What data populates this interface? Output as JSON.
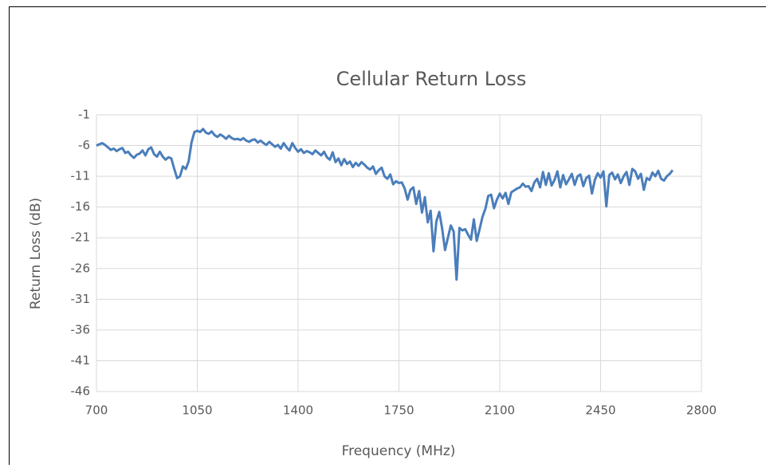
{
  "chart_data": {
    "type": "line",
    "title": "Cellular Return Loss",
    "x_label": "Frequency (MHz)",
    "y_label": "Return Loss (dB)",
    "color": "#4a7ebb",
    "grid": true,
    "xlim": [
      700,
      2800
    ],
    "xticks": [
      700,
      1050,
      1400,
      1750,
      2100,
      2450,
      2800
    ],
    "ylim": [
      -46,
      -1
    ],
    "yticks": [
      -46,
      -41,
      -36,
      -31,
      -26,
      -21,
      -16,
      -11,
      -6,
      -1
    ],
    "x": [
      700,
      710,
      720,
      730,
      740,
      750,
      760,
      770,
      780,
      790,
      800,
      810,
      820,
      830,
      840,
      850,
      860,
      870,
      880,
      890,
      900,
      910,
      920,
      930,
      940,
      950,
      960,
      970,
      980,
      990,
      1000,
      1010,
      1020,
      1030,
      1040,
      1050,
      1060,
      1070,
      1080,
      1090,
      1100,
      1110,
      1120,
      1130,
      1140,
      1150,
      1160,
      1170,
      1180,
      1190,
      1200,
      1210,
      1220,
      1230,
      1240,
      1250,
      1260,
      1270,
      1280,
      1290,
      1300,
      1310,
      1320,
      1330,
      1340,
      1350,
      1360,
      1370,
      1380,
      1390,
      1400,
      1410,
      1420,
      1430,
      1440,
      1450,
      1460,
      1470,
      1480,
      1490,
      1500,
      1510,
      1520,
      1530,
      1540,
      1550,
      1560,
      1570,
      1580,
      1590,
      1600,
      1610,
      1620,
      1630,
      1640,
      1650,
      1660,
      1670,
      1680,
      1690,
      1700,
      1710,
      1720,
      1730,
      1740,
      1750,
      1760,
      1770,
      1780,
      1790,
      1800,
      1810,
      1820,
      1830,
      1840,
      1850,
      1860,
      1870,
      1880,
      1890,
      1900,
      1910,
      1920,
      1930,
      1940,
      1950,
      1960,
      1970,
      1980,
      1990,
      2000,
      2010,
      2020,
      2030,
      2040,
      2050,
      2060,
      2070,
      2080,
      2090,
      2100,
      2110,
      2120,
      2130,
      2140,
      2150,
      2160,
      2170,
      2180,
      2190,
      2200,
      2210,
      2220,
      2230,
      2240,
      2250,
      2260,
      2270,
      2280,
      2290,
      2300,
      2310,
      2320,
      2330,
      2340,
      2350,
      2360,
      2370,
      2380,
      2390,
      2400,
      2410,
      2420,
      2430,
      2440,
      2450,
      2460,
      2470,
      2480,
      2490,
      2500,
      2510,
      2520,
      2530,
      2540,
      2550,
      2560,
      2570,
      2580,
      2590,
      2600,
      2610,
      2620,
      2630,
      2640,
      2650,
      2660,
      2670,
      2680,
      2690,
      2700
    ],
    "values": [
      -6.0,
      -5.8,
      -5.6,
      -5.9,
      -6.3,
      -6.7,
      -6.5,
      -6.9,
      -6.6,
      -6.4,
      -7.2,
      -7.0,
      -7.6,
      -8.0,
      -7.5,
      -7.3,
      -6.8,
      -7.6,
      -6.6,
      -6.3,
      -7.4,
      -7.8,
      -7.0,
      -7.8,
      -8.3,
      -7.9,
      -8.1,
      -9.8,
      -11.3,
      -11.0,
      -9.4,
      -9.8,
      -8.6,
      -5.5,
      -3.8,
      -3.6,
      -3.8,
      -3.3,
      -3.9,
      -4.1,
      -3.7,
      -4.3,
      -4.6,
      -4.2,
      -4.5,
      -4.9,
      -4.4,
      -4.8,
      -5.0,
      -4.9,
      -5.1,
      -4.8,
      -5.2,
      -5.4,
      -5.1,
      -5.0,
      -5.5,
      -5.2,
      -5.6,
      -5.9,
      -5.4,
      -5.8,
      -6.2,
      -5.9,
      -6.5,
      -5.6,
      -6.3,
      -6.8,
      -5.6,
      -6.4,
      -7.0,
      -6.6,
      -7.2,
      -6.9,
      -7.1,
      -7.4,
      -6.8,
      -7.2,
      -7.6,
      -7.0,
      -7.9,
      -8.3,
      -7.1,
      -8.7,
      -8.1,
      -9.2,
      -8.2,
      -9.0,
      -8.6,
      -9.5,
      -8.8,
      -9.3,
      -8.7,
      -9.1,
      -9.6,
      -9.9,
      -9.4,
      -10.6,
      -10.0,
      -9.6,
      -11.0,
      -11.4,
      -10.7,
      -12.3,
      -11.8,
      -12.1,
      -12.0,
      -13.0,
      -14.8,
      -13.2,
      -12.8,
      -15.5,
      -13.4,
      -16.9,
      -14.4,
      -18.5,
      -16.6,
      -23.2,
      -18.3,
      -16.8,
      -19.5,
      -23.0,
      -21.0,
      -19.0,
      -20.0,
      -27.8,
      -19.4,
      -19.8,
      -19.6,
      -20.5,
      -21.3,
      -18.0,
      -21.5,
      -19.6,
      -17.6,
      -16.3,
      -14.2,
      -14.0,
      -16.2,
      -14.8,
      -13.8,
      -14.6,
      -13.7,
      -15.5,
      -13.6,
      -13.3,
      -13.0,
      -12.8,
      -12.2,
      -12.7,
      -12.6,
      -13.4,
      -12.0,
      -11.4,
      -12.8,
      -10.3,
      -12.4,
      -10.5,
      -12.5,
      -11.6,
      -10.2,
      -12.8,
      -10.8,
      -12.3,
      -11.5,
      -10.6,
      -12.4,
      -11.0,
      -10.7,
      -12.6,
      -11.3,
      -10.9,
      -13.8,
      -11.6,
      -10.5,
      -11.2,
      -10.2,
      -15.9,
      -10.8,
      -10.4,
      -11.5,
      -10.7,
      -12.1,
      -11.0,
      -10.3,
      -12.4,
      -9.8,
      -10.2,
      -11.4,
      -10.6,
      -13.2,
      -11.3,
      -11.6,
      -10.4,
      -11.0,
      -10.1,
      -11.4,
      -11.7,
      -11.0,
      -10.6,
      -10.0
    ]
  }
}
